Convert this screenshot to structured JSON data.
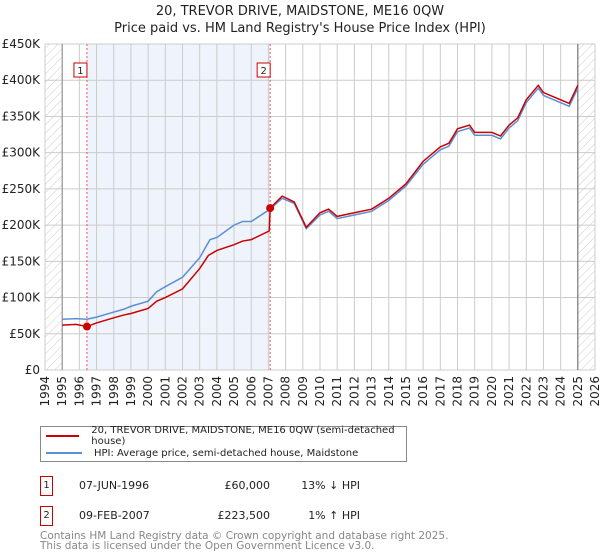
{
  "chart_data": {
    "type": "line",
    "title": "20, TREVOR DRIVE, MAIDSTONE, ME16 0QW",
    "subtitle": "Price paid vs. HM Land Registry's House Price Index (HPI)",
    "xlim": [
      1994,
      2026
    ],
    "ylim": [
      0,
      450000
    ],
    "x_ticks": [
      "1994",
      "1995",
      "1996",
      "1997",
      "1998",
      "1999",
      "2000",
      "2001",
      "2002",
      "2003",
      "2004",
      "2005",
      "2006",
      "2007",
      "2008",
      "2009",
      "2010",
      "2011",
      "2012",
      "2013",
      "2014",
      "2015",
      "2016",
      "2017",
      "2018",
      "2019",
      "2020",
      "2021",
      "2022",
      "2023",
      "2024",
      "2025",
      "2026"
    ],
    "y_ticks": [
      {
        "v": 0,
        "label": "£0"
      },
      {
        "v": 50000,
        "label": "£50K"
      },
      {
        "v": 100000,
        "label": "£100K"
      },
      {
        "v": 150000,
        "label": "£150K"
      },
      {
        "v": 200000,
        "label": "£200K"
      },
      {
        "v": 250000,
        "label": "£250K"
      },
      {
        "v": 300000,
        "label": "£300K"
      },
      {
        "v": 350000,
        "label": "£350K"
      },
      {
        "v": 400000,
        "label": "£400K"
      },
      {
        "v": 450000,
        "label": "£450K"
      }
    ],
    "series": [
      {
        "name": "20, TREVOR DRIVE, MAIDSTONE, ME16 0QW (semi-detached house)",
        "color": "#cc0000",
        "x": [
          1995,
          1995.8,
          1996.44,
          1997,
          1998,
          1998.6,
          1999,
          2000,
          2000.5,
          2001,
          2002,
          2003,
          2003.5,
          2004,
          2005,
          2005.5,
          2006,
          2007.05,
          2007.1,
          2007.8,
          2008.5,
          2009.2,
          2010,
          2010.5,
          2011,
          2012,
          2013,
          2014,
          2015,
          2016,
          2017,
          2017.5,
          2018,
          2018.7,
          2019,
          2020,
          2020.5,
          2021,
          2021.5,
          2022,
          2022.7,
          2023,
          2023.5,
          2024,
          2024.5,
          2025
        ],
        "y": [
          62000,
          63000,
          60000,
          65000,
          72000,
          76000,
          78000,
          85000,
          95000,
          100000,
          112000,
          140000,
          158000,
          165000,
          173000,
          178000,
          180000,
          192000,
          223500,
          240000,
          232000,
          197000,
          217000,
          222000,
          212000,
          217000,
          222000,
          237000,
          257000,
          288000,
          308000,
          313000,
          333000,
          338000,
          328000,
          328000,
          323000,
          338000,
          348000,
          373000,
          393000,
          383000,
          378000,
          373000,
          368000,
          393000
        ]
      },
      {
        "name": "HPI: Average price, semi-detached house, Maidstone",
        "color": "#5b8fd4",
        "x": [
          1995,
          1995.8,
          1996.44,
          1997,
          1998,
          1998.6,
          1999,
          2000,
          2000.5,
          2001,
          2002,
          2003,
          2003.6,
          2004,
          2005,
          2005.5,
          2006,
          2007.1,
          2007.8,
          2008.5,
          2009.2,
          2010,
          2010.5,
          2011,
          2012,
          2013,
          2014,
          2015,
          2016,
          2017,
          2017.5,
          2018,
          2018.7,
          2019,
          2020,
          2020.5,
          2021,
          2021.5,
          2022,
          2022.7,
          2023,
          2023.5,
          2024,
          2024.5,
          2025
        ],
        "y": [
          70000,
          71000,
          70000,
          73000,
          80000,
          84000,
          88000,
          95000,
          108000,
          115000,
          128000,
          155000,
          180000,
          183000,
          200000,
          205000,
          205000,
          222000,
          237000,
          230000,
          195000,
          214000,
          219000,
          209000,
          214000,
          219000,
          234000,
          254000,
          284000,
          304000,
          309000,
          329000,
          334000,
          324000,
          324000,
          319000,
          334000,
          344000,
          369000,
          389000,
          379000,
          374000,
          369000,
          364000,
          389000
        ]
      }
    ],
    "sales": [
      {
        "n": "1",
        "x": 1996.44,
        "y": 60000
      },
      {
        "n": "2",
        "x": 2007.1,
        "y": 223500
      }
    ],
    "shaded_range": [
      1996.44,
      2007.1
    ],
    "hatched_ranges": [
      [
        1994,
        1995
      ],
      [
        2025,
        2026
      ]
    ]
  },
  "title": "20, TREVOR DRIVE, MAIDSTONE, ME16 0QW",
  "subtitle": "Price paid vs. HM Land Registry's House Price Index (HPI)",
  "legend": [
    "20, TREVOR DRIVE, MAIDSTONE, ME16 0QW (semi-detached house)",
    "HPI: Average price, semi-detached house, Maidstone"
  ],
  "transactions": [
    {
      "n": "1",
      "date": "07-JUN-1996",
      "price": "£60,000",
      "hpi": "13% ↓ HPI"
    },
    {
      "n": "2",
      "date": "09-FEB-2007",
      "price": "£223,500",
      "hpi": "1% ↑ HPI"
    }
  ],
  "footer": [
    "Contains HM Land Registry data © Crown copyright and database right 2025.",
    "This data is licensed under the Open Government Licence v3.0."
  ]
}
